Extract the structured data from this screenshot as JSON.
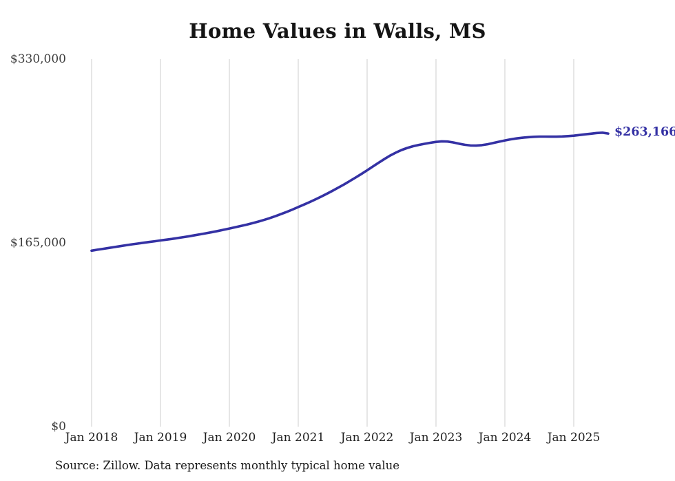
{
  "page": {
    "source_note": "Source: Zillow. Data represents monthly typical home value"
  },
  "colors": {
    "line": "#3431a4",
    "grid": "#cccccc",
    "axis_text": "#3d3d3d",
    "title_text": "#141414"
  },
  "chart_data": {
    "type": "line",
    "title": "Home Values in Walls, MS",
    "x_tick_labels": [
      "Jan 2018",
      "Jan 2019",
      "Jan 2020",
      "Jan 2021",
      "Jan 2022",
      "Jan 2023",
      "Jan 2024",
      "Jan 2025"
    ],
    "y_ticks": [
      {
        "label": "$0",
        "value": 0
      },
      {
        "label": "$165,000",
        "value": 165000
      },
      {
        "label": "$330,000",
        "value": 330000
      }
    ],
    "ylim": [
      0,
      330000
    ],
    "x_start": "2018-01",
    "frequency": "monthly",
    "grid": "vertical-only",
    "legend": "none",
    "end_label": "$263,166",
    "final_value": 263166,
    "series": [
      {
        "name": "Typical home value",
        "values": [
          158000,
          158900,
          159700,
          160500,
          161300,
          162100,
          162900,
          163700,
          164400,
          165100,
          165800,
          166500,
          167200,
          167900,
          168600,
          169400,
          170200,
          171000,
          171900,
          172800,
          173700,
          174700,
          175700,
          176800,
          177900,
          179000,
          180200,
          181400,
          182700,
          184100,
          185600,
          187200,
          189000,
          190900,
          192900,
          195000,
          197200,
          199400,
          201700,
          204100,
          206600,
          209200,
          211900,
          214700,
          217600,
          220600,
          223700,
          226900,
          230200,
          233600,
          237000,
          240300,
          243400,
          246100,
          248400,
          250300,
          251800,
          253000,
          254000,
          254900,
          255700,
          256200,
          256000,
          255200,
          254100,
          253100,
          252500,
          252400,
          252800,
          253600,
          254700,
          255900,
          257000,
          258000,
          258800,
          259400,
          259900,
          260300,
          260500,
          260500,
          260400,
          260400,
          260600,
          260900,
          261300,
          261900,
          262500,
          263100,
          263700,
          264000,
          263166
        ]
      }
    ]
  }
}
